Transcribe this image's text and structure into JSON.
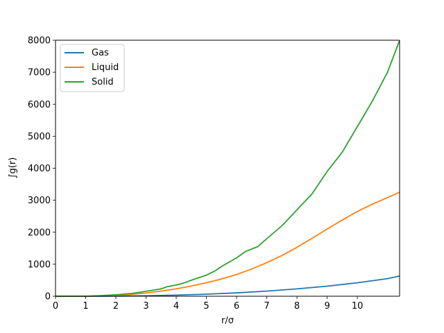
{
  "chart_data": {
    "type": "line",
    "xlabel": "r/σ",
    "ylabel": "∫g(r)",
    "xlim": [
      0,
      11.4
    ],
    "ylim": [
      0,
      8000
    ],
    "xticks": [
      0,
      1,
      2,
      3,
      4,
      5,
      6,
      7,
      8,
      9,
      10
    ],
    "xtick_labels": [
      "0",
      "1",
      "2",
      "3",
      "4",
      "5",
      "6",
      "7",
      "8",
      "9",
      "10"
    ],
    "yticks": [
      0,
      1000,
      2000,
      3000,
      4000,
      5000,
      6000,
      7000,
      8000
    ],
    "ytick_labels": [
      "0",
      "1000",
      "2000",
      "3000",
      "4000",
      "5000",
      "6000",
      "7000",
      "8000"
    ],
    "grid": false,
    "legend_position": "top-left",
    "series": [
      {
        "name": "Gas",
        "color": "#1f77b4",
        "x": [
          0,
          1,
          2,
          3,
          4,
          5,
          6,
          7,
          8,
          9,
          10,
          11,
          11.4
        ],
        "y": [
          0,
          0,
          5,
          15,
          35,
          65,
          105,
          160,
          230,
          315,
          420,
          550,
          630
        ]
      },
      {
        "name": "Liquid",
        "color": "#ff7f0e",
        "x": [
          0,
          1,
          1.5,
          2,
          2.5,
          3,
          3.5,
          4,
          4.5,
          5,
          5.5,
          6,
          6.5,
          7,
          7.5,
          8,
          8.5,
          9,
          9.5,
          10,
          10.5,
          11,
          11.4
        ],
        "y": [
          0,
          0,
          10,
          25,
          60,
          100,
          160,
          230,
          320,
          420,
          540,
          680,
          850,
          1050,
          1270,
          1530,
          1810,
          2100,
          2380,
          2650,
          2880,
          3080,
          3250
        ]
      },
      {
        "name": "Solid",
        "color": "#2ca02c",
        "x": [
          0,
          1,
          1.5,
          2,
          2.5,
          2.7,
          3,
          3.5,
          3.7,
          4,
          4.3,
          4.5,
          5,
          5.3,
          5.5,
          6,
          6.3,
          6.7,
          7,
          7.5,
          8,
          8.5,
          9,
          9.5,
          10,
          10.5,
          11,
          11.4
        ],
        "y": [
          0,
          0,
          20,
          45,
          85,
          110,
          155,
          230,
          300,
          350,
          430,
          500,
          660,
          800,
          930,
          1200,
          1400,
          1550,
          1800,
          2200,
          2700,
          3200,
          3900,
          4500,
          5300,
          6100,
          7000,
          8000
        ]
      }
    ]
  }
}
